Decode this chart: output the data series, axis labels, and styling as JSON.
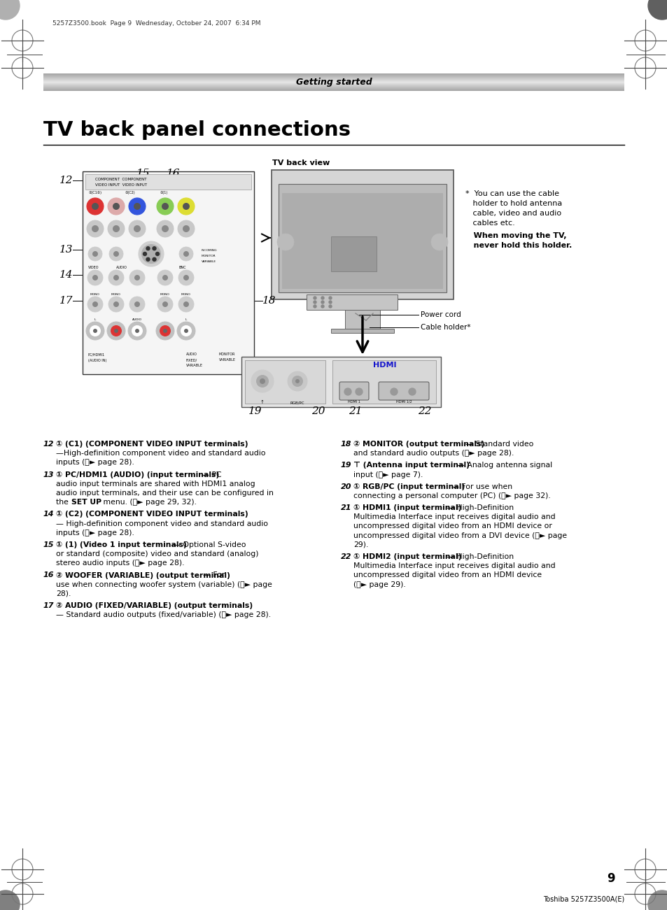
{
  "page_title": "TV back panel connections",
  "section_header": "Getting started",
  "header_file": "5257Z3500.book  Page 9  Wednesday, October 24, 2007  6:34 PM",
  "tv_back_view_label": "TV back view",
  "page_number": "9",
  "footer_text": "Toshiba 5257Z3500A(E)",
  "power_cord_label": "Power cord",
  "cable_holder_label": "Cable holder*",
  "bg_color": "#ffffff",
  "note_lines": [
    "*  You can use the cable",
    "   holder to hold antenna",
    "   cable, video and audio",
    "   cables etc."
  ],
  "note_bold_lines": [
    "When moving the TV,",
    "never hold this holder."
  ]
}
